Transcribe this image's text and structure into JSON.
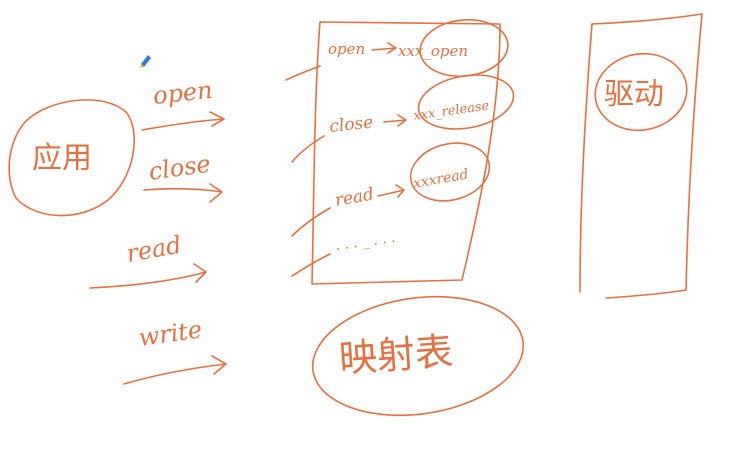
{
  "colors": {
    "ink": "#e8703e",
    "background": "#ffffff",
    "pen_blue": "#2f7de0",
    "pen_yellow": "#f3c623"
  },
  "icons": {
    "pen_cursor": "pen-cursor-icon"
  },
  "left": {
    "app_label": "应用",
    "calls": [
      "open",
      "close",
      "read",
      "write"
    ]
  },
  "table": {
    "entries": [
      {
        "call": "open",
        "target": "xxx_open"
      },
      {
        "call": "close",
        "target": "xxx_release"
      },
      {
        "call": "read",
        "target": "xxxread"
      }
    ],
    "ellipsis": ". . . _ . . .",
    "label": "映射表"
  },
  "driver": {
    "label": "驱动"
  }
}
